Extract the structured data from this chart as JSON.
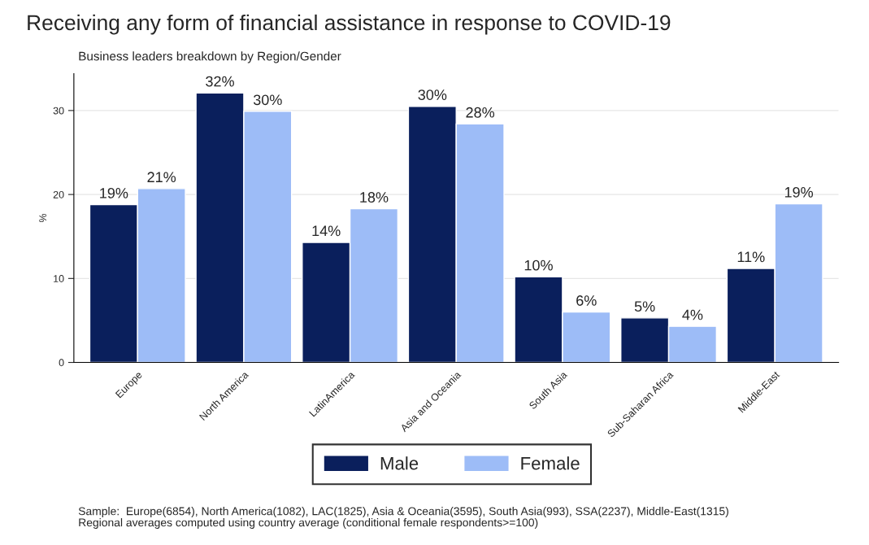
{
  "chart_data": {
    "type": "bar",
    "title": "Receiving any form of financial assistance in response to COVID-19",
    "subtitle": "Business leaders breakdown by Region/Gender",
    "ylabel": "%",
    "categories": [
      "Europe",
      "North America",
      "LatinAmerica",
      "Asia and Oceania",
      "South Asia",
      "Sub-Saharan Africa",
      "Middle-East"
    ],
    "series": [
      {
        "name": "Male",
        "color": "#0a1f5c",
        "values": [
          18.8,
          32.1,
          14.3,
          30.5,
          10.2,
          5.3,
          11.2
        ],
        "value_labels": [
          "19%",
          "32%",
          "14%",
          "30%",
          "10%",
          "5%",
          "11%"
        ]
      },
      {
        "name": "Female",
        "color": "#9dbcf7",
        "values": [
          20.7,
          29.9,
          18.3,
          28.4,
          6.0,
          4.3,
          18.9
        ],
        "value_labels": [
          "21%",
          "30%",
          "18%",
          "28%",
          "6%",
          "4%",
          "19%"
        ]
      }
    ],
    "ylim": [
      0,
      34.4
    ],
    "yticks": [
      0,
      10,
      20,
      30
    ],
    "grid": "y",
    "legend": "bottom",
    "annotations": [
      "Sample:  Europe(6854), North America(1082), LAC(1825), Asia & Oceania(3595), South Asia(993), SSA(2237), Middle-East(1315)\nRegional averages computed using country average (conditional female respondents>=100)"
    ]
  }
}
